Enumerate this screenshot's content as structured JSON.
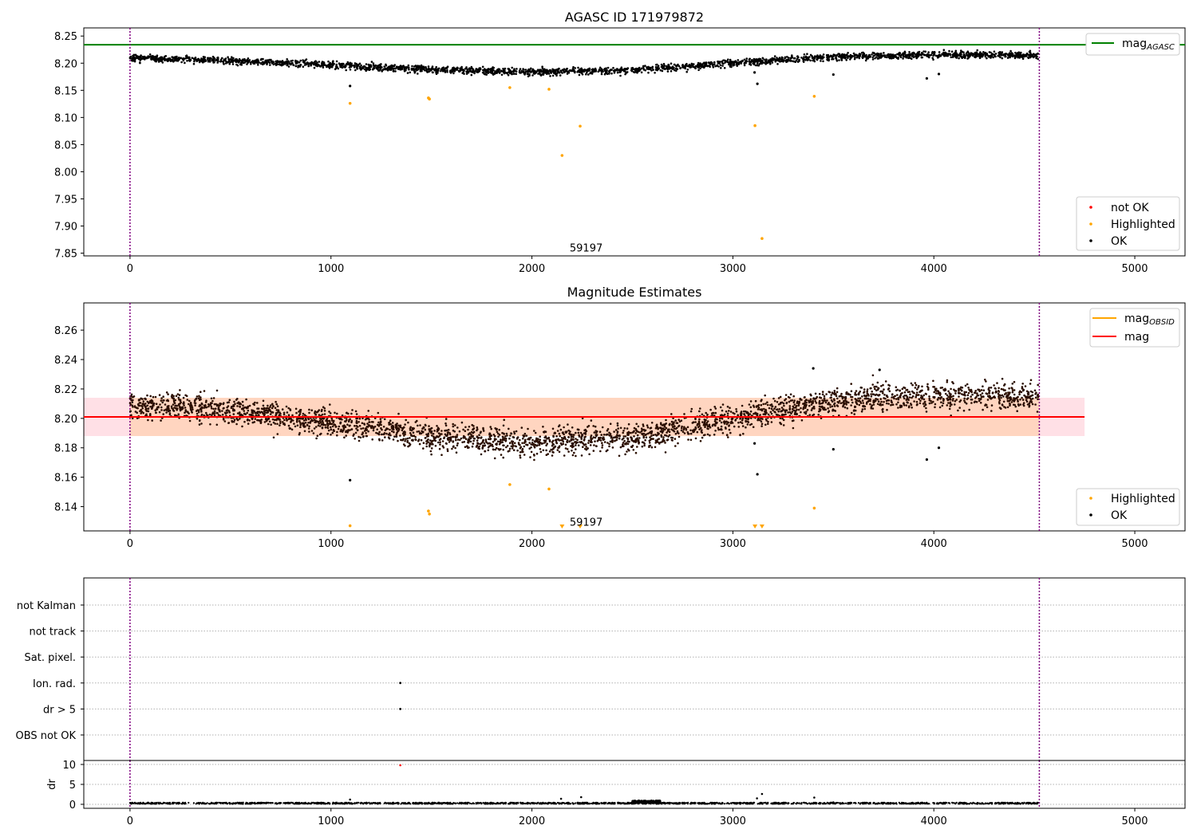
{
  "figure": {
    "panels": [
      {
        "id": "agasc",
        "title": "AGASC ID 171979872",
        "xlim": [
          -230,
          5250
        ],
        "ylim": [
          7.845,
          8.265
        ],
        "xticks": [
          0,
          1000,
          2000,
          3000,
          4000,
          5000
        ],
        "yticks": [
          "7.85",
          "7.90",
          "7.95",
          "8.00",
          "8.05",
          "8.10",
          "8.15",
          "8.20",
          "8.25"
        ],
        "vlines": [
          0,
          4525
        ],
        "hlines": [
          {
            "y": 8.234,
            "color": "#008000",
            "label_main": "mag",
            "label_sub": "AGASC"
          }
        ],
        "annotation": {
          "text": "59197",
          "x": 2270,
          "y": 7.853
        },
        "legend_points": [
          {
            "label": "not OK",
            "color": "#ff0000"
          },
          {
            "label": "Highlighted",
            "color": "#ffa500"
          },
          {
            "label": "OK",
            "color": "#000000"
          }
        ]
      },
      {
        "id": "estimates",
        "title": "Magnitude Estimates",
        "xlim": [
          -230,
          5250
        ],
        "ylim": [
          8.1235,
          8.2785
        ],
        "xticks": [
          0,
          1000,
          2000,
          3000,
          4000,
          5000
        ],
        "yticks": [
          "8.14",
          "8.16",
          "8.18",
          "8.20",
          "8.22",
          "8.24",
          "8.26"
        ],
        "vlines": [
          0,
          4525
        ],
        "band": {
          "x0": -230,
          "x1": 4750,
          "y_low": 8.188,
          "y_high": 8.214,
          "color": "#ffe0e6"
        },
        "band_inner": {
          "x0": 0,
          "x1": 4525,
          "y_low": 8.188,
          "y_high": 8.214,
          "color": "#ffd5c0"
        },
        "hlines": [
          {
            "y": 8.201,
            "color": "#ff0000",
            "x1": 4750
          }
        ],
        "lines_legend": [
          {
            "label_main": "mag",
            "label_sub": "OBSID",
            "color": "#ffa500"
          },
          {
            "label_main": "mag",
            "label_sub": "",
            "color": "#ff0000"
          }
        ],
        "annotation": {
          "text": "59197",
          "x": 2270,
          "y": 8.127
        },
        "legend_points": [
          {
            "label": "Highlighted",
            "color": "#ffa500"
          },
          {
            "label": "OK",
            "color": "#000000"
          }
        ]
      },
      {
        "id": "flags",
        "xlim": [
          -230,
          5250
        ],
        "vlines": [
          0,
          4525
        ],
        "categories": [
          "not Kalman",
          "not track",
          "Sat. pixel.",
          "Ion. rad.",
          "dr > 5",
          "OBS not OK"
        ],
        "flag_points": [
          {
            "category": "Ion. rad.",
            "x": 1345
          },
          {
            "category": "dr > 5",
            "x": 1345
          }
        ]
      },
      {
        "id": "dr",
        "ylabel": "dr",
        "xlim": [
          -230,
          5250
        ],
        "ylim": [
          -1,
          11
        ],
        "xticks": [
          0,
          1000,
          2000,
          3000,
          4000,
          5000
        ],
        "yticks": [
          0,
          5,
          10
        ],
        "vlines": [
          0,
          4525
        ],
        "red_point": {
          "x": 1345,
          "y": 9.8
        }
      }
    ]
  },
  "chart_data": [
    {
      "type": "scatter",
      "title": "AGASC ID 171979872",
      "xlabel": "",
      "ylabel": "",
      "xlim": [
        -230,
        5250
      ],
      "ylim": [
        7.845,
        8.265
      ],
      "reference_line": {
        "name": "mag_AGASC",
        "y": 8.234
      },
      "ok_trend": {
        "x": [
          0,
          500,
          1000,
          1500,
          2000,
          2500,
          3000,
          3500,
          4000,
          4500
        ],
        "y": [
          8.21,
          8.205,
          8.197,
          8.188,
          8.184,
          8.187,
          8.2,
          8.212,
          8.216,
          8.215
        ]
      },
      "ok_outliers": [
        {
          "x": 1095,
          "y": 8.158
        },
        {
          "x": 3122,
          "y": 8.162
        },
        {
          "x": 3500,
          "y": 8.179
        },
        {
          "x": 3965,
          "y": 8.172
        },
        {
          "x": 4025,
          "y": 8.18
        },
        {
          "x": 3108,
          "y": 8.183
        }
      ],
      "highlighted": [
        {
          "x": 1095,
          "y": 8.126
        },
        {
          "x": 1485,
          "y": 8.136
        },
        {
          "x": 1490,
          "y": 8.134
        },
        {
          "x": 1890,
          "y": 8.155
        },
        {
          "x": 2085,
          "y": 8.152
        },
        {
          "x": 2150,
          "y": 8.03
        },
        {
          "x": 2240,
          "y": 8.084
        },
        {
          "x": 3110,
          "y": 8.085
        },
        {
          "x": 3145,
          "y": 7.877
        },
        {
          "x": 3405,
          "y": 8.139
        }
      ],
      "annotation": "59197"
    },
    {
      "type": "scatter",
      "title": "Magnitude Estimates",
      "xlabel": "",
      "ylabel": "",
      "xlim": [
        -230,
        5250
      ],
      "ylim": [
        8.1235,
        8.2785
      ],
      "mag": 8.201,
      "mag_band": [
        8.188,
        8.214
      ],
      "ok_trend": {
        "x": [
          0,
          500,
          1000,
          1500,
          2000,
          2500,
          3000,
          3500,
          4000,
          4500
        ],
        "y": [
          8.21,
          8.205,
          8.197,
          8.188,
          8.184,
          8.187,
          8.2,
          8.212,
          8.216,
          8.215
        ]
      },
      "ok_outliers": [
        {
          "x": 1095,
          "y": 8.158
        },
        {
          "x": 3122,
          "y": 8.162
        },
        {
          "x": 3500,
          "y": 8.179
        },
        {
          "x": 3965,
          "y": 8.172
        },
        {
          "x": 4025,
          "y": 8.18
        },
        {
          "x": 3108,
          "y": 8.183
        },
        {
          "x": 3400,
          "y": 8.234
        },
        {
          "x": 3730,
          "y": 8.233
        }
      ],
      "highlighted": [
        {
          "x": 1095,
          "y": 8.127
        },
        {
          "x": 1485,
          "y": 8.137
        },
        {
          "x": 1490,
          "y": 8.135
        },
        {
          "x": 1890,
          "y": 8.155
        },
        {
          "x": 2085,
          "y": 8.152
        },
        {
          "x": 3405,
          "y": 8.139
        }
      ],
      "highlighted_below_axis": [
        2150,
        2240,
        3110,
        3145
      ],
      "annotation": "59197"
    },
    {
      "type": "scatter",
      "title": "",
      "categories": [
        "not Kalman",
        "not track",
        "Sat. pixel.",
        "Ion. rad.",
        "dr > 5",
        "OBS not OK"
      ],
      "flagged": [
        {
          "category": "Ion. rad.",
          "x": 1345
        },
        {
          "category": "dr > 5",
          "x": 1345
        }
      ]
    },
    {
      "type": "scatter",
      "title": "",
      "ylabel": "dr",
      "xlim": [
        -230,
        5250
      ],
      "ylim": [
        -1,
        11
      ],
      "baseline": 0.1,
      "spikes": [
        {
          "x": 1095,
          "y": 1.2
        },
        {
          "x": 1345,
          "y": 9.8
        },
        {
          "x": 2145,
          "y": 1.4
        },
        {
          "x": 2245,
          "y": 1.8
        },
        {
          "x": 3120,
          "y": 1.5
        },
        {
          "x": 3145,
          "y": 2.6
        },
        {
          "x": 3405,
          "y": 1.7
        },
        {
          "x": 3500,
          "y": 0.5
        }
      ],
      "bump": {
        "x_from": 2500,
        "x_to": 2640,
        "y": 0.8
      }
    }
  ]
}
